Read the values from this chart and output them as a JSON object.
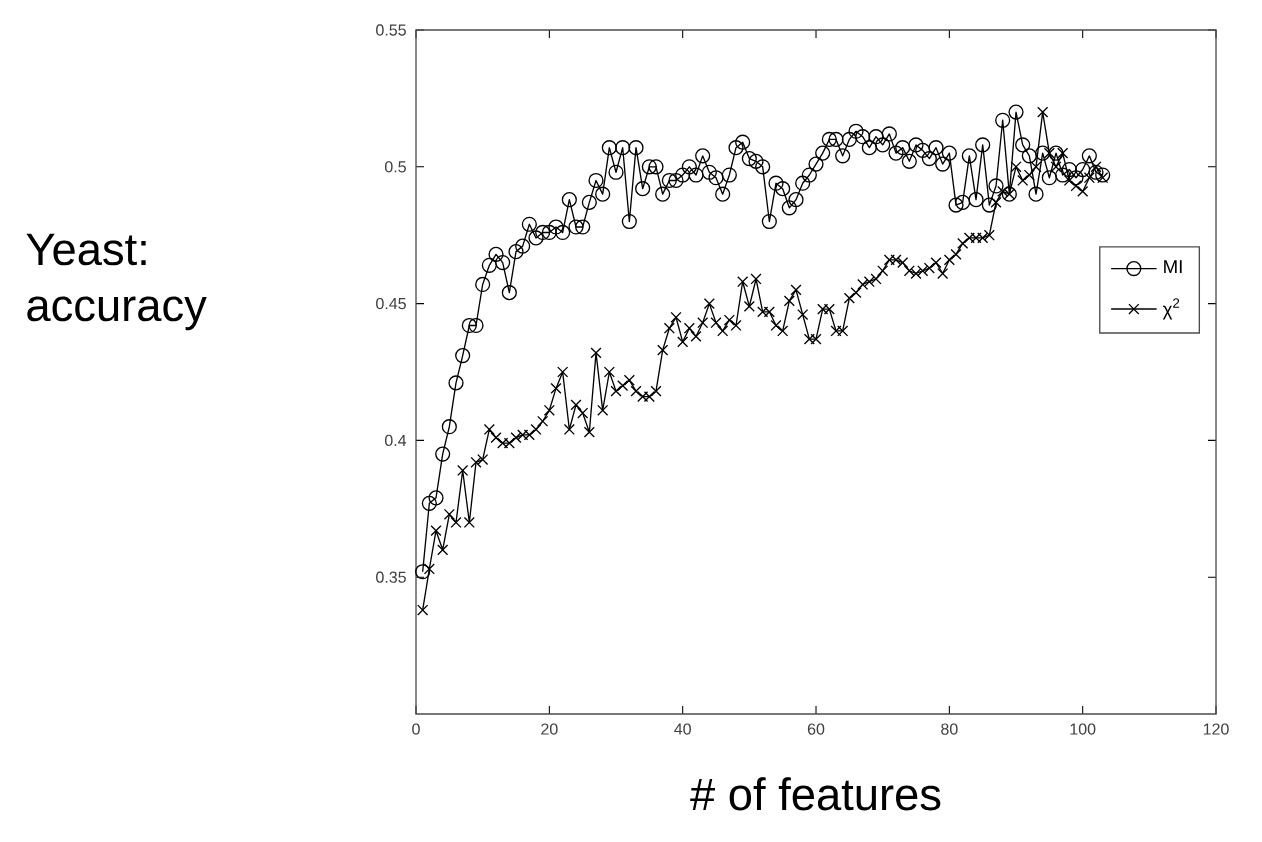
{
  "chart_data": {
    "type": "line",
    "xlabel": "# of features",
    "ylabel": "Yeast: accuracy",
    "x": [
      1,
      2,
      3,
      4,
      5,
      6,
      7,
      8,
      9,
      10,
      11,
      12,
      13,
      14,
      15,
      16,
      17,
      18,
      19,
      20,
      21,
      22,
      23,
      24,
      25,
      26,
      27,
      28,
      29,
      30,
      31,
      32,
      33,
      34,
      35,
      36,
      37,
      38,
      39,
      40,
      41,
      42,
      43,
      44,
      45,
      46,
      47,
      48,
      49,
      50,
      51,
      52,
      53,
      54,
      55,
      56,
      57,
      58,
      59,
      60,
      61,
      62,
      63,
      64,
      65,
      66,
      67,
      68,
      69,
      70,
      71,
      72,
      73,
      74,
      75,
      76,
      77,
      78,
      79,
      80,
      81,
      82,
      83,
      84,
      85,
      86,
      87,
      88,
      89,
      90,
      91,
      92,
      93,
      94,
      95,
      96,
      97,
      98,
      99,
      100,
      101,
      102,
      103
    ],
    "series": [
      {
        "name": "MI",
        "color": "#000000",
        "marker": "circle",
        "values": [
          0.352,
          0.377,
          0.379,
          0.395,
          0.405,
          0.421,
          0.431,
          0.442,
          0.442,
          0.457,
          0.464,
          0.468,
          0.465,
          0.454,
          0.469,
          0.471,
          0.479,
          0.474,
          0.476,
          0.476,
          0.478,
          0.476,
          0.488,
          0.478,
          0.478,
          0.487,
          0.495,
          0.49,
          0.507,
          0.498,
          0.507,
          0.48,
          0.507,
          0.492,
          0.5,
          0.5,
          0.49,
          0.495,
          0.495,
          0.497,
          0.5,
          0.497,
          0.504,
          0.498,
          0.496,
          0.49,
          0.497,
          0.507,
          0.509,
          0.503,
          0.502,
          0.5,
          0.48,
          0.494,
          0.492,
          0.485,
          0.488,
          0.494,
          0.497,
          0.501,
          0.505,
          0.51,
          0.51,
          0.504,
          0.51,
          0.513,
          0.511,
          0.507,
          0.511,
          0.508,
          0.512,
          0.505,
          0.507,
          0.502,
          0.508,
          0.506,
          0.503,
          0.507,
          0.501,
          0.505,
          0.486,
          0.487,
          0.504,
          0.488,
          0.508,
          0.486,
          0.493,
          0.517,
          0.49,
          0.52,
          0.508,
          0.504,
          0.49,
          0.505,
          0.496,
          0.505,
          0.497,
          0.499,
          0.496,
          0.499,
          0.504,
          0.498,
          0.497
        ]
      },
      {
        "name": "χ$^{2}$",
        "color": "#000000",
        "marker": "cross",
        "values": [
          0.338,
          0.353,
          0.367,
          0.36,
          0.373,
          0.37,
          0.389,
          0.37,
          0.392,
          0.393,
          0.404,
          0.401,
          0.399,
          0.399,
          0.401,
          0.402,
          0.402,
          0.404,
          0.407,
          0.411,
          0.419,
          0.425,
          0.404,
          0.413,
          0.41,
          0.403,
          0.432,
          0.411,
          0.425,
          0.418,
          0.42,
          0.422,
          0.418,
          0.416,
          0.416,
          0.418,
          0.433,
          0.441,
          0.445,
          0.436,
          0.441,
          0.438,
          0.443,
          0.45,
          0.443,
          0.44,
          0.444,
          0.442,
          0.458,
          0.449,
          0.459,
          0.447,
          0.447,
          0.442,
          0.44,
          0.451,
          0.455,
          0.446,
          0.437,
          0.437,
          0.448,
          0.448,
          0.44,
          0.44,
          0.452,
          0.454,
          0.457,
          0.458,
          0.459,
          0.462,
          0.466,
          0.466,
          0.465,
          0.462,
          0.461,
          0.462,
          0.463,
          0.465,
          0.461,
          0.466,
          0.468,
          0.472,
          0.474,
          0.474,
          0.474,
          0.475,
          0.487,
          0.491,
          0.49,
          0.5,
          0.495,
          0.497,
          0.5,
          0.52,
          0.505,
          0.5,
          0.505,
          0.495,
          0.493,
          0.491,
          0.496,
          0.5,
          0.496
        ]
      }
    ],
    "xlim": [
      0,
      120
    ],
    "xticks": [
      0,
      20,
      40,
      60,
      80,
      100,
      120
    ],
    "ylim": [
      0.3,
      0.55
    ],
    "yticks": [
      0.35,
      0.4,
      0.45,
      0.5,
      0.55
    ],
    "grid": false,
    "legend": "right",
    "line_style": "solid"
  }
}
